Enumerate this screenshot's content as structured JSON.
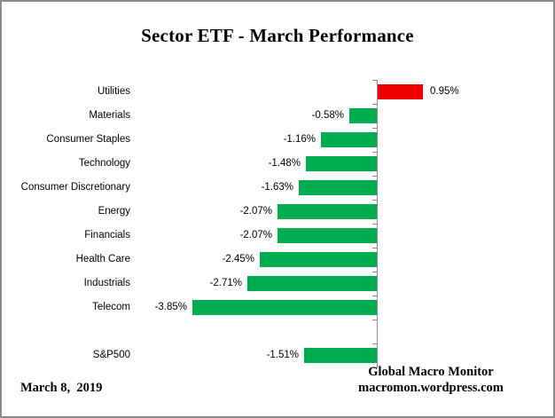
{
  "title": "Sector ETF - March Performance",
  "footer": {
    "date": "March 8,  2019",
    "brand_line1": "Global Macro Monitor",
    "brand_line2": "macromon.wordpress.com"
  },
  "chart_data": {
    "type": "bar",
    "orientation": "horizontal",
    "title": "Sector ETF - March Performance",
    "xlabel": "",
    "ylabel": "",
    "categories": [
      "Utilities",
      "Materials",
      "Consumer Staples",
      "Technology",
      "Consumer Discretionary",
      "Energy",
      "Financials",
      "Health Care",
      "Industrials",
      "Telecom",
      "",
      "S&P500"
    ],
    "values": [
      0.95,
      -0.58,
      -1.16,
      -1.48,
      -1.63,
      -2.07,
      -2.07,
      -2.45,
      -2.71,
      -3.85,
      null,
      -1.51
    ],
    "data_labels": [
      "0.95%",
      "-0.58%",
      "-1.16%",
      "-1.48%",
      "-1.63%",
      "-2.07%",
      "-2.07%",
      "-2.45%",
      "-2.71%",
      "-3.85%",
      "",
      "-1.51%"
    ],
    "unit": "%",
    "colors": {
      "positive_bar": "#ee0000",
      "negative_bar": "#00ac50",
      "axis": "#8c8c8c",
      "text": "#000000"
    },
    "legend": "none",
    "grid": "off",
    "value_axis_hidden": true,
    "xlim": [
      -5.0,
      3.7
    ]
  }
}
